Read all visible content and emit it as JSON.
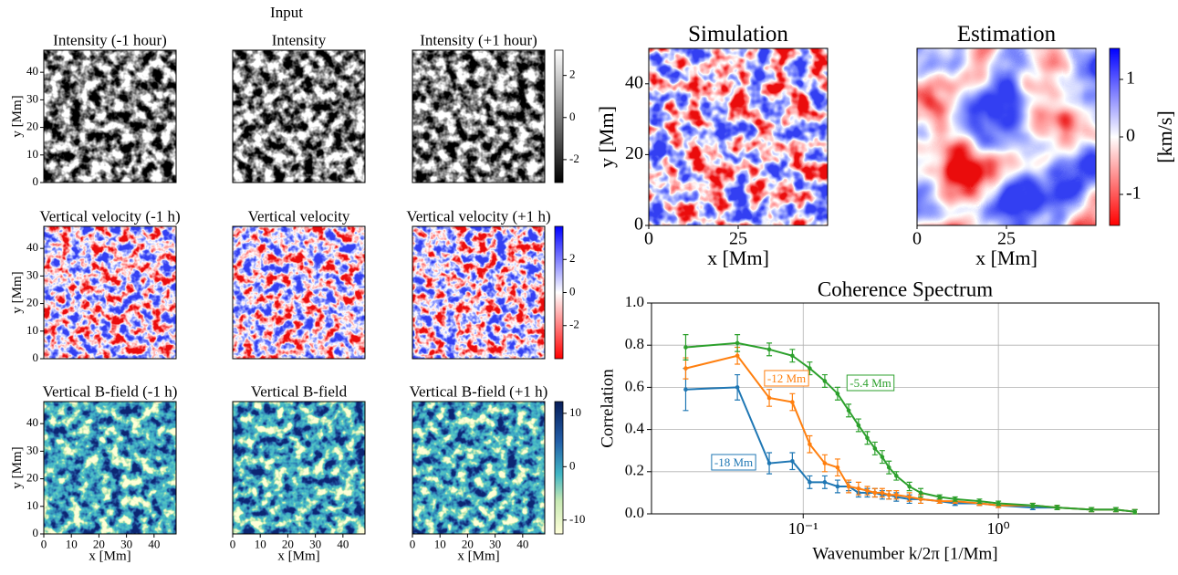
{
  "figure_label": "Input",
  "chart_data": [
    {
      "type": "image",
      "title": "Intensity (-1 hour)",
      "colormap": "gray",
      "xlim": [
        0,
        48
      ],
      "ylim": [
        0,
        48
      ],
      "yticks": [
        0,
        10,
        20,
        30,
        40
      ],
      "ylabel": "y [Mm]"
    },
    {
      "type": "image",
      "title": "Intensity",
      "colormap": "gray",
      "xlim": [
        0,
        48
      ],
      "ylim": [
        0,
        48
      ]
    },
    {
      "type": "image",
      "title": "Intensity (+1 hour)",
      "colormap": "gray",
      "xlim": [
        0,
        48
      ],
      "ylim": [
        0,
        48
      ],
      "colorbar": {
        "lim": [
          -3.09,
          3.2
        ],
        "ticks": [
          -2,
          0,
          2
        ]
      }
    },
    {
      "type": "image",
      "title": "Vertical velocity (-1 h)",
      "colormap": "bwr_r",
      "xlim": [
        0,
        48
      ],
      "ylim": [
        0,
        48
      ],
      "yticks": [
        0,
        10,
        20,
        30,
        40
      ],
      "ylabel": "y [Mm]"
    },
    {
      "type": "image",
      "title": "Vertical velocity",
      "colormap": "bwr_r",
      "xlim": [
        0,
        48
      ],
      "ylim": [
        0,
        48
      ]
    },
    {
      "type": "image",
      "title": "Vertical velocity (+1 h)",
      "colormap": "bwr_r",
      "xlim": [
        0,
        48
      ],
      "ylim": [
        0,
        48
      ],
      "colorbar": {
        "lim": [
          -4,
          4
        ],
        "ticks": [
          -2,
          0,
          2
        ]
      }
    },
    {
      "type": "image",
      "title": "Vertical B-field (-1 h)",
      "colormap": "YlGnBu",
      "xlim": [
        0,
        48
      ],
      "ylim": [
        0,
        48
      ],
      "yticks": [
        0,
        10,
        20,
        30,
        40
      ],
      "ylabel": "y [Mm]",
      "xticks": [
        0,
        10,
        20,
        30,
        40
      ],
      "xlabel": "x [Mm]"
    },
    {
      "type": "image",
      "title": "Vertical B-field",
      "colormap": "YlGnBu",
      "xlim": [
        0,
        48
      ],
      "ylim": [
        0,
        48
      ],
      "xticks": [
        0,
        10,
        20,
        30,
        40
      ],
      "xlabel": "x [Mm]"
    },
    {
      "type": "image",
      "title": "Vertical B-field (+1 h)",
      "colormap": "YlGnBu",
      "xlim": [
        0,
        48
      ],
      "ylim": [
        0,
        48
      ],
      "xticks": [
        0,
        10,
        20,
        30,
        40
      ],
      "xlabel": "x [Mm]",
      "colorbar": {
        "lim": [
          -12.6,
          12.2
        ],
        "ticks": [
          -10,
          0,
          10
        ]
      }
    },
    {
      "type": "image",
      "title": "Simulation",
      "colormap": "bwr_r",
      "xlim": [
        0,
        50
      ],
      "ylim": [
        0,
        50
      ],
      "xticks": [
        0,
        25
      ],
      "yticks": [
        0,
        20,
        40
      ],
      "xlabel": "x [Mm]",
      "ylabel": "y [Mm]"
    },
    {
      "type": "image",
      "title": "Estimation",
      "colormap": "bwr_r",
      "xlim": [
        0,
        50
      ],
      "ylim": [
        0,
        50
      ],
      "xticks": [
        0,
        25
      ],
      "xlabel": "x [Mm]",
      "colorbar": {
        "lim": [
          -1.54,
          1.54
        ],
        "ticks": [
          -1,
          0,
          1
        ],
        "label": "[km/s]"
      }
    },
    {
      "type": "line",
      "title": "Coherence Spectrum",
      "xlabel": "Wavenumber k/2π [1/Mm]",
      "ylabel": "Correlation",
      "xscale": "log",
      "grid": true,
      "xlim": [
        0.0167,
        6.64
      ],
      "ylim": [
        0,
        1.0
      ],
      "xticks": [
        {
          "value": 0.1,
          "label": "10⁻¹"
        },
        {
          "value": 1,
          "label": "10⁰"
        }
      ],
      "yticks": [
        {
          "value": 0,
          "label": "0.0"
        },
        {
          "value": 0.2,
          "label": "0.2"
        },
        {
          "value": 0.4,
          "label": "0.4"
        },
        {
          "value": 0.6,
          "label": "0.6"
        },
        {
          "value": 0.8,
          "label": "0.8"
        },
        {
          "value": 1.0,
          "label": "1.0"
        }
      ],
      "x": [
        0.025,
        0.046,
        0.067,
        0.088,
        0.108,
        0.129,
        0.15,
        0.171,
        0.192,
        0.213,
        0.233,
        0.254,
        0.275,
        0.3,
        0.35,
        0.4,
        0.5,
        0.6,
        0.8,
        1.0,
        1.5,
        2,
        3,
        4,
        5
      ],
      "series": [
        {
          "color": "#1f77b4",
          "values": [
            0.59,
            0.6,
            0.24,
            0.25,
            0.15,
            0.15,
            0.13,
            0.13,
            0.1,
            0.1,
            0.1,
            0.09,
            0.09,
            0.08,
            0.07,
            0.07,
            0.06,
            0.05,
            0.05,
            0.04,
            0.03,
            0.03,
            0.02,
            0.02,
            0.01
          ],
          "errors": [
            0.1,
            0.06,
            0.05,
            0.04,
            0.03,
            0.03,
            0.03,
            0.02,
            0.02,
            0.02,
            0.02,
            0.02,
            0.02,
            0.02,
            0.02,
            0.02,
            0.01,
            0.01,
            0.01,
            0.01,
            0.01,
            0.01,
            0.01,
            0.01,
            0.01
          ]
        },
        {
          "color": "#ff7f0e",
          "values": [
            0.69,
            0.75,
            0.55,
            0.53,
            0.33,
            0.24,
            0.22,
            0.13,
            0.12,
            0.11,
            0.1,
            0.1,
            0.09,
            0.09,
            0.08,
            0.07,
            0.06,
            0.06,
            0.05,
            0.04,
            0.04,
            0.03,
            0.02,
            0.02,
            0.01
          ],
          "errors": [
            0.05,
            0.04,
            0.04,
            0.04,
            0.04,
            0.04,
            0.04,
            0.03,
            0.03,
            0.02,
            0.02,
            0.02,
            0.02,
            0.02,
            0.02,
            0.02,
            0.01,
            0.01,
            0.01,
            0.01,
            0.01,
            0.01,
            0.01,
            0.01,
            0.01
          ]
        },
        {
          "color": "#2ca02c",
          "values": [
            0.79,
            0.81,
            0.78,
            0.75,
            0.69,
            0.63,
            0.57,
            0.49,
            0.42,
            0.36,
            0.31,
            0.27,
            0.22,
            0.18,
            0.13,
            0.1,
            0.08,
            0.07,
            0.06,
            0.05,
            0.04,
            0.03,
            0.02,
            0.02,
            0.01
          ],
          "errors": [
            0.06,
            0.04,
            0.03,
            0.03,
            0.03,
            0.03,
            0.03,
            0.03,
            0.03,
            0.03,
            0.03,
            0.03,
            0.03,
            0.02,
            0.02,
            0.02,
            0.01,
            0.01,
            0.01,
            0.01,
            0.01,
            0.01,
            0.01,
            0.01,
            0.01
          ]
        }
      ],
      "annotations": [
        {
          "text": "-18 Mm",
          "color": "#1f77b4"
        },
        {
          "text": "-12 Mm",
          "color": "#ff7f0e"
        },
        {
          "text": "-5.4 Mm",
          "color": "#2ca02c"
        }
      ]
    }
  ]
}
